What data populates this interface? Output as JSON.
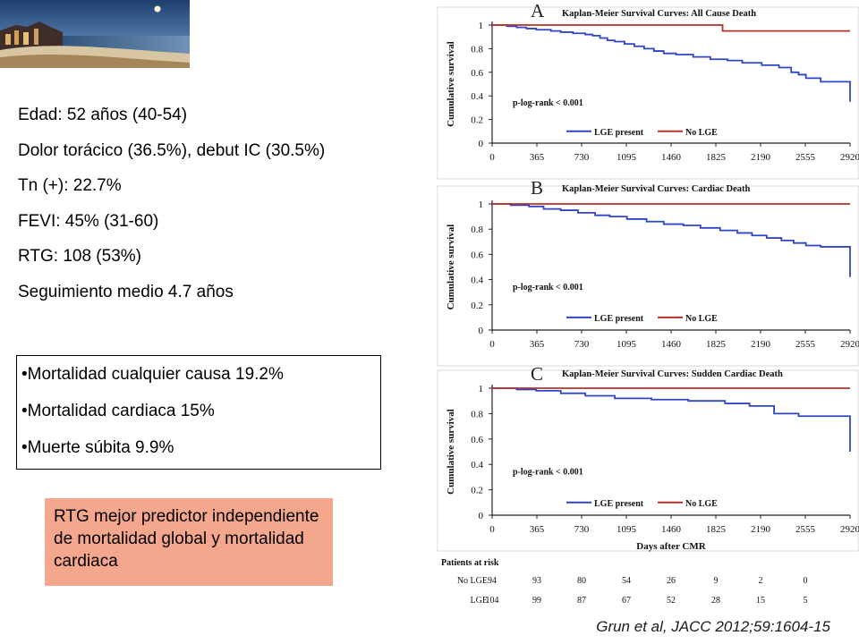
{
  "facts": [
    "Edad: 52 años (40-54)",
    "Dolor torácico (36.5%), debut IC (30.5%)",
    "Tn (+): 22.7%",
    "FEVI: 45% (31-60)",
    "RTG: 108 (53%)",
    "Seguimiento medio 4.7 años"
  ],
  "bullets": [
    "•Mortalidad cualquier causa 19.2%",
    "•Mortalidad cardiaca 15%",
    "•Muerte súbita 9.9%"
  ],
  "callout": "RTG mejor predictor independiente de mortalidad global y mortalidad cardiaca",
  "citation": "Grun et al, JACC 2012;59:1604-15",
  "colors": {
    "lge": "#2e45c9",
    "nolge": "#b8322a",
    "callout_bg": "#f4a78c"
  },
  "chart_data": [
    {
      "type": "line",
      "panel": "A",
      "title": "Kaplan-Meier Survival Curves: All Cause Death",
      "xlabel": "",
      "ylabel": "Cumulative survival",
      "xticks": [
        "0",
        "365",
        "730",
        "1095",
        "1460",
        "1825",
        "2190",
        "2555",
        "2920"
      ],
      "yticks": [
        "0",
        "0.2",
        "0.4",
        "0.6",
        "0.8",
        "1"
      ],
      "xlim": [
        0,
        2920
      ],
      "ylim": [
        0,
        1
      ],
      "annotation": "p-log-rank < 0.001",
      "series": [
        {
          "name": "LGE present",
          "color": "#2e45c9",
          "x": [
            0,
            120,
            200,
            280,
            360,
            480,
            560,
            660,
            760,
            820,
            880,
            940,
            1000,
            1080,
            1160,
            1240,
            1320,
            1400,
            1500,
            1640,
            1780,
            1920,
            2040,
            2200,
            2340,
            2440,
            2500,
            2560,
            2680,
            2880,
            2920
          ],
          "y": [
            1,
            0.99,
            0.98,
            0.97,
            0.96,
            0.95,
            0.94,
            0.93,
            0.92,
            0.91,
            0.89,
            0.87,
            0.86,
            0.84,
            0.82,
            0.8,
            0.78,
            0.76,
            0.75,
            0.73,
            0.71,
            0.7,
            0.68,
            0.66,
            0.64,
            0.6,
            0.58,
            0.55,
            0.52,
            0.52,
            0.35
          ]
        },
        {
          "name": "No LGE",
          "color": "#b8322a",
          "x": [
            0,
            1860,
            1880,
            2920
          ],
          "y": [
            1,
            1,
            0.95,
            0.95
          ]
        }
      ]
    },
    {
      "type": "line",
      "panel": "B",
      "title": "Kaplan-Meier Survival Curves: Cardiac Death",
      "xlabel": "",
      "ylabel": "Cumulative survival",
      "xticks": [
        "0",
        "365",
        "730",
        "1095",
        "1460",
        "1825",
        "2190",
        "2555",
        "2920"
      ],
      "yticks": [
        "0",
        "0.2",
        "0.4",
        "0.6",
        "0.8",
        "1"
      ],
      "xlim": [
        0,
        2920
      ],
      "ylim": [
        0,
        1
      ],
      "annotation": "p-log-rank < 0.001",
      "series": [
        {
          "name": "LGE present",
          "color": "#2e45c9",
          "x": [
            0,
            150,
            300,
            420,
            560,
            700,
            840,
            960,
            1100,
            1260,
            1400,
            1560,
            1700,
            1860,
            2000,
            2120,
            2240,
            2360,
            2460,
            2560,
            2680,
            2880,
            2920
          ],
          "y": [
            1,
            0.99,
            0.98,
            0.96,
            0.95,
            0.93,
            0.91,
            0.9,
            0.88,
            0.86,
            0.84,
            0.83,
            0.81,
            0.79,
            0.77,
            0.75,
            0.73,
            0.71,
            0.69,
            0.67,
            0.66,
            0.66,
            0.42
          ]
        },
        {
          "name": "No LGE",
          "color": "#b8322a",
          "x": [
            0,
            2920
          ],
          "y": [
            1,
            1
          ]
        }
      ]
    },
    {
      "type": "line",
      "panel": "C",
      "title": "Kaplan-Meier Survival Curves: Sudden Cardiac Death",
      "xlabel": "Days after CMR",
      "ylabel": "Cumulative survival",
      "xticks": [
        "0",
        "365",
        "730",
        "1095",
        "1460",
        "1825",
        "2190",
        "2555",
        "2920"
      ],
      "yticks": [
        "0",
        "0.2",
        "0.4",
        "0.6",
        "0.8",
        "1"
      ],
      "xlim": [
        0,
        2920
      ],
      "ylim": [
        0,
        1
      ],
      "annotation": "p-log-rank < 0.001",
      "series": [
        {
          "name": "LGE present",
          "color": "#2e45c9",
          "x": [
            0,
            200,
            360,
            560,
            760,
            1000,
            1300,
            1600,
            1900,
            2100,
            2300,
            2500,
            2920,
            2920
          ],
          "y": [
            1,
            0.99,
            0.98,
            0.96,
            0.94,
            0.92,
            0.91,
            0.9,
            0.88,
            0.86,
            0.8,
            0.78,
            0.78,
            0.5
          ]
        },
        {
          "name": "No LGE",
          "color": "#b8322a",
          "x": [
            0,
            2920
          ],
          "y": [
            1,
            1
          ]
        }
      ],
      "risk_table": {
        "title": "Patients at risk",
        "rows": [
          {
            "label": "No LGE",
            "values": [
              "94",
              "93",
              "80",
              "54",
              "26",
              "9",
              "2",
              "0"
            ]
          },
          {
            "label": "LGE",
            "values": [
              "104",
              "99",
              "87",
              "67",
              "52",
              "28",
              "15",
              "5"
            ]
          }
        ]
      }
    }
  ]
}
